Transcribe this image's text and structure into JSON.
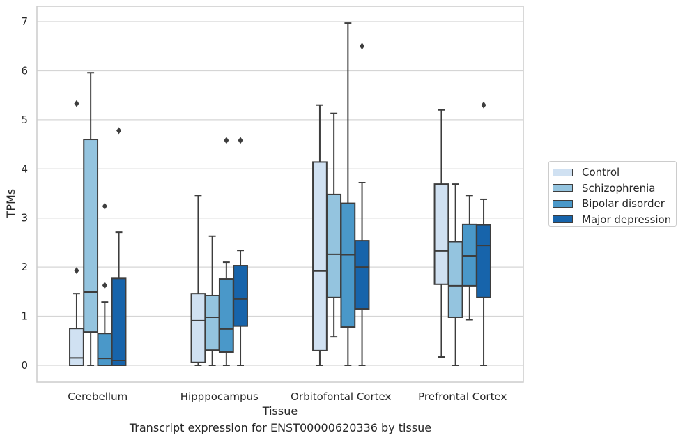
{
  "caption": "Transcript expression for ENST00000620336 by tissue",
  "chart_data": {
    "type": "boxplot",
    "xlabel": "Tissue",
    "ylabel": "TPMs",
    "ylim": [
      -0.35,
      7.3
    ],
    "yticks": [
      "0",
      "1",
      "2",
      "3",
      "4",
      "5",
      "6",
      "7"
    ],
    "grid": true,
    "legend_position": "right",
    "categories": [
      "Cerebellum",
      "Hipppocampus",
      "Orbitofontal Cortex",
      "Prefrontal Cortex"
    ],
    "series": [
      {
        "name": "Control",
        "color": "#d0e1f2",
        "boxes": [
          {
            "whislo": 0.0,
            "q1": 0.0,
            "med": 0.15,
            "q3": 0.75,
            "whishi": 1.46,
            "fliers": [
              1.93,
              5.33
            ]
          },
          {
            "whislo": 0.0,
            "q1": 0.06,
            "med": 0.91,
            "q3": 1.46,
            "whishi": 3.46,
            "fliers": []
          },
          {
            "whislo": 0.0,
            "q1": 0.3,
            "med": 1.92,
            "q3": 4.14,
            "whishi": 5.3,
            "fliers": []
          },
          {
            "whislo": 0.17,
            "q1": 1.65,
            "med": 2.33,
            "q3": 3.69,
            "whishi": 5.2,
            "fliers": []
          }
        ]
      },
      {
        "name": "Schizophrenia",
        "color": "#94c4df",
        "boxes": [
          {
            "whislo": 0.0,
            "q1": 0.68,
            "med": 1.49,
            "q3": 4.6,
            "whishi": 5.96,
            "fliers": []
          },
          {
            "whislo": 0.0,
            "q1": 0.31,
            "med": 0.98,
            "q3": 1.42,
            "whishi": 2.63,
            "fliers": []
          },
          {
            "whislo": 0.58,
            "q1": 1.38,
            "med": 2.26,
            "q3": 3.48,
            "whishi": 5.13,
            "fliers": []
          },
          {
            "whislo": 0.0,
            "q1": 0.98,
            "med": 1.62,
            "q3": 2.52,
            "whishi": 3.69,
            "fliers": []
          }
        ]
      },
      {
        "name": "Bipolar disorder",
        "color": "#4a98c9",
        "boxes": [
          {
            "whislo": 0.0,
            "q1": 0.0,
            "med": 0.14,
            "q3": 0.65,
            "whishi": 1.29,
            "fliers": [
              1.63,
              3.24
            ]
          },
          {
            "whislo": 0.0,
            "q1": 0.27,
            "med": 0.74,
            "q3": 1.76,
            "whishi": 2.1,
            "fliers": [
              4.58
            ]
          },
          {
            "whislo": 0.0,
            "q1": 0.78,
            "med": 2.25,
            "q3": 3.3,
            "whishi": 6.97,
            "fliers": []
          },
          {
            "whislo": 0.93,
            "q1": 1.62,
            "med": 2.23,
            "q3": 2.87,
            "whishi": 3.46,
            "fliers": []
          }
        ]
      },
      {
        "name": "Major depression",
        "color": "#1764ab",
        "boxes": [
          {
            "whislo": 0.0,
            "q1": 0.0,
            "med": 0.1,
            "q3": 1.77,
            "whishi": 2.71,
            "fliers": [
              4.78
            ]
          },
          {
            "whislo": 0.0,
            "q1": 0.8,
            "med": 1.35,
            "q3": 2.03,
            "whishi": 2.34,
            "fliers": [
              4.58
            ]
          },
          {
            "whislo": 0.0,
            "q1": 1.15,
            "med": 2.0,
            "q3": 2.54,
            "whishi": 3.72,
            "fliers": [
              6.5
            ]
          },
          {
            "whislo": 0.0,
            "q1": 1.38,
            "med": 2.44,
            "q3": 2.86,
            "whishi": 3.38,
            "fliers": [
              5.3
            ]
          }
        ]
      }
    ]
  }
}
